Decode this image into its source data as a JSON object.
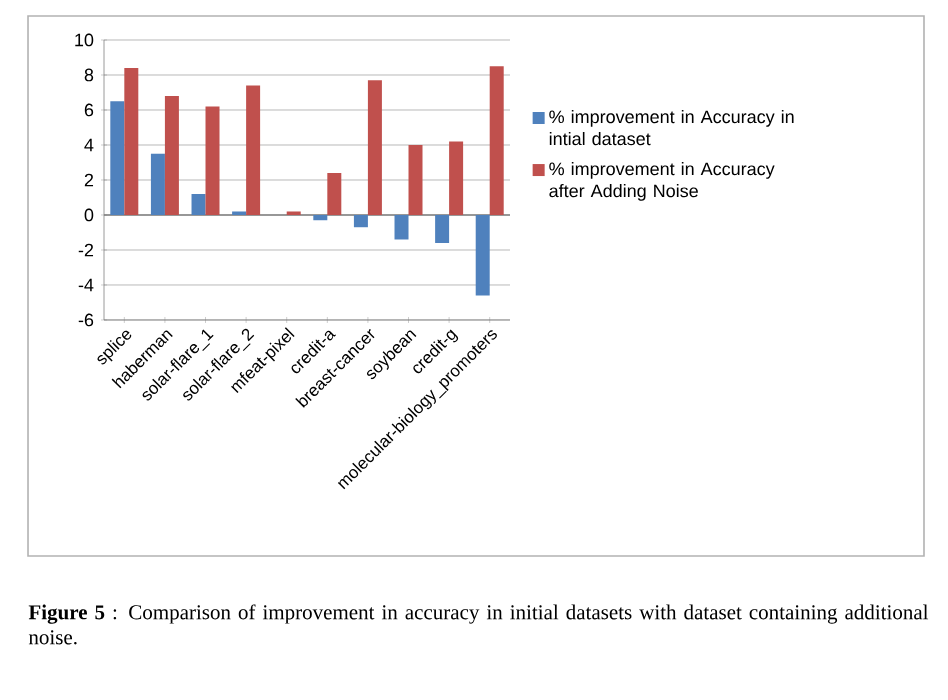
{
  "chart_data": {
    "type": "bar",
    "categories": [
      "splice",
      "haberman",
      "solar-flare_1",
      "solar-flare_2",
      "mfeat-pixel",
      "credit-a",
      "breast-cancer",
      "soybean",
      "credit-g",
      "molecular-biology_promoters"
    ],
    "series": [
      {
        "name": "% improvement in Accuracy in intial dataset",
        "color": "#4f81bd",
        "values": [
          6.5,
          3.5,
          1.2,
          0.2,
          0,
          -0.3,
          -0.7,
          -1.4,
          -1.6,
          -4.6
        ]
      },
      {
        "name": "% improvement in Accuracy after Adding Noise",
        "color": "#c0504d",
        "values": [
          8.4,
          6.8,
          6.2,
          7.4,
          0.2,
          2.4,
          7.7,
          4.0,
          4.2,
          8.5
        ]
      }
    ],
    "ylim": [
      -6,
      10
    ],
    "yticks": [
      -6,
      -4,
      -2,
      0,
      2,
      4,
      6,
      8,
      10
    ],
    "grid": "y",
    "legend": "right",
    "annotations": [
      "**Figure 5** : Comparison of improvement in accuracy in initial datasets with dataset containing additional noise."
    ]
  }
}
